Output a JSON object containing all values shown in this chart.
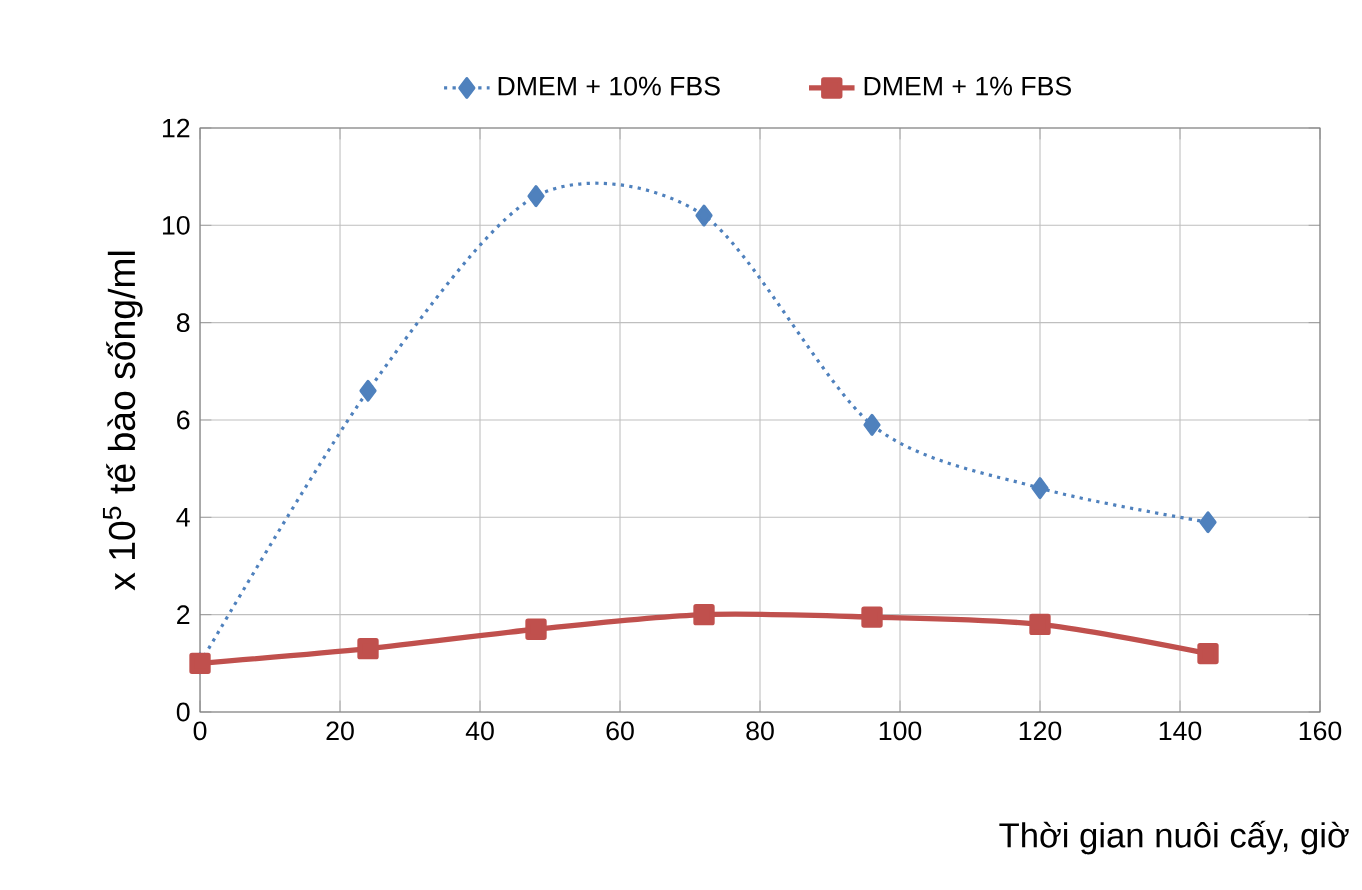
{
  "chart_data": {
    "type": "line",
    "xlabel": "Thời gian nuôi cấy, giờ",
    "ylabel": "x 10$^{5}$ tế bào sống/ml",
    "x": [
      0,
      24,
      48,
      72,
      96,
      120,
      144
    ],
    "series": [
      {
        "name": "DMEM + 10% FBS",
        "color": "#4f81bd",
        "marker": "diamond",
        "line_style": "dotted",
        "values": [
          1,
          6.6,
          10.6,
          10.2,
          5.9,
          4.6,
          3.9
        ]
      },
      {
        "name": "DMEM + 1% FBS",
        "color": "#c0504d",
        "marker": "square",
        "line_style": "solid",
        "values": [
          1,
          1.3,
          1.7,
          2.0,
          1.95,
          1.8,
          1.2
        ]
      }
    ],
    "xlim": [
      0,
      160
    ],
    "xticks": [
      0,
      20,
      40,
      60,
      80,
      100,
      120,
      140,
      160
    ],
    "ylim": [
      0,
      12
    ],
    "yticks": [
      0,
      2,
      4,
      6,
      8,
      10,
      12
    ],
    "grid": true,
    "legend": "top"
  }
}
